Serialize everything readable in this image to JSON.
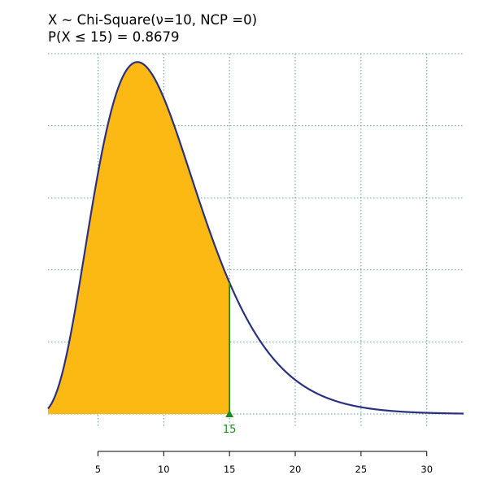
{
  "chart_data": {
    "type": "area",
    "title": "X ~ Chi-Square(ν=10, NCP =0)",
    "subtitle": "P(X ≤ 15) = 0.8679",
    "distribution": "chi-square",
    "df": 10,
    "ncp": 0,
    "x_range": [
      1.2,
      32.8
    ],
    "y_range": [
      0,
      0.1
    ],
    "x_ticks": [
      5,
      10,
      15,
      20,
      25,
      30
    ],
    "y_gridlines": [
      0,
      0.02,
      0.04,
      0.06,
      0.08,
      0.1
    ],
    "shaded_upper": 15,
    "marker_x": 15,
    "marker_label": "15",
    "probability": 0.8679,
    "grid": true,
    "colors": {
      "curve": "#2b3180",
      "fill": "#fdb913",
      "grid": "#5a9f86",
      "marker": "#1f8a1f"
    }
  }
}
